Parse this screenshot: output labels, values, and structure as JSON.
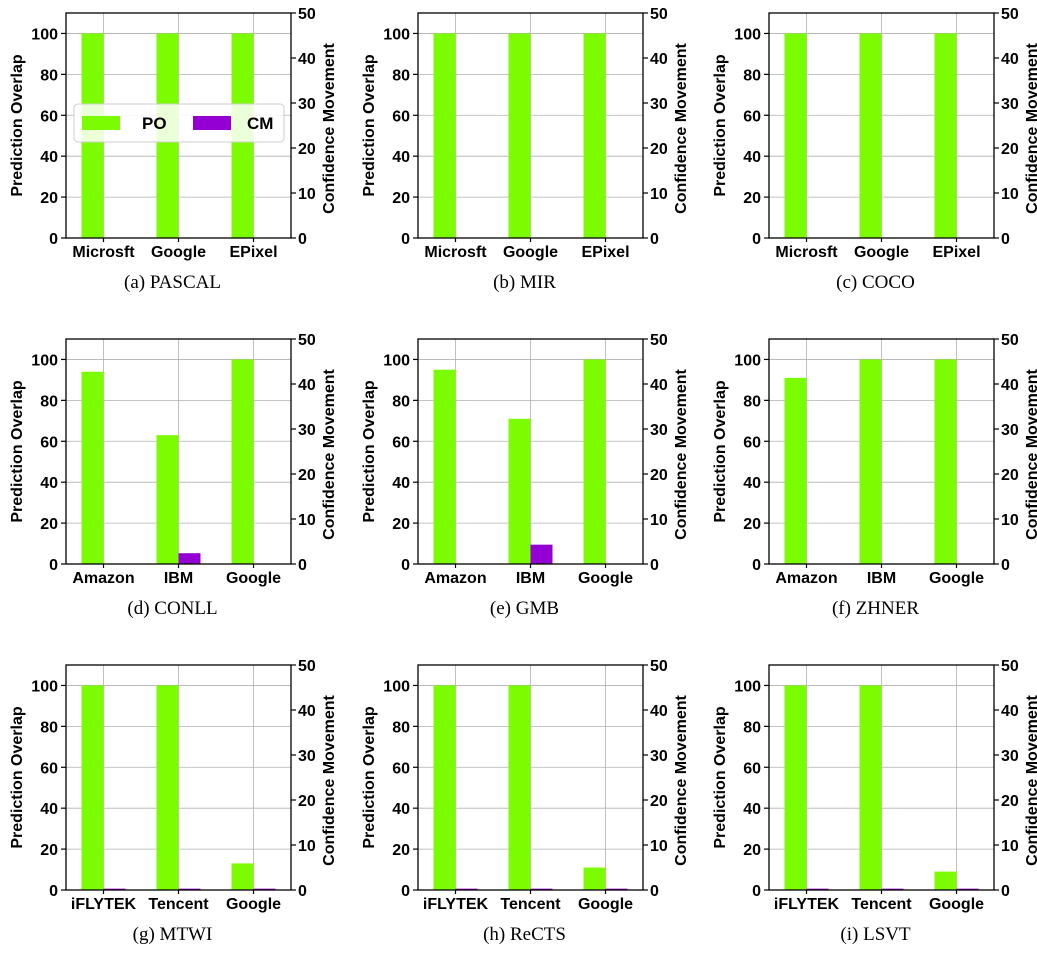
{
  "legend": {
    "po_label": "PO",
    "cm_label": "CM"
  },
  "colors": {
    "po": "#7CFC00",
    "cm": "#9400D3"
  },
  "chart_data": [
    {
      "type": "bar",
      "caption": "(a) PASCAL",
      "categories": [
        "Microsft",
        "Google",
        "EPixel"
      ],
      "series": [
        {
          "name": "PO",
          "values": [
            100,
            100,
            100
          ],
          "axis": "left"
        },
        {
          "name": "CM",
          "values": [
            0,
            0,
            0
          ],
          "axis": "right"
        }
      ],
      "ylabel": "Prediction Overlap",
      "ylabel_right": "Confidence Movement",
      "ylim": [
        0,
        110
      ],
      "ylim_right": [
        0,
        50
      ],
      "yticks": [
        0,
        20,
        40,
        60,
        80,
        100
      ],
      "yticks_right": [
        0,
        10,
        20,
        30,
        40,
        50
      ],
      "grid": true,
      "legend": "center-left"
    },
    {
      "type": "bar",
      "caption": "(b) MIR",
      "categories": [
        "Microsft",
        "Google",
        "EPixel"
      ],
      "series": [
        {
          "name": "PO",
          "values": [
            100,
            100,
            100
          ],
          "axis": "left"
        },
        {
          "name": "CM",
          "values": [
            0,
            0,
            0
          ],
          "axis": "right"
        }
      ],
      "ylabel": "Prediction Overlap",
      "ylabel_right": "Confidence Movement",
      "ylim": [
        0,
        110
      ],
      "ylim_right": [
        0,
        50
      ],
      "yticks": [
        0,
        20,
        40,
        60,
        80,
        100
      ],
      "yticks_right": [
        0,
        10,
        20,
        30,
        40,
        50
      ],
      "grid": true
    },
    {
      "type": "bar",
      "caption": "(c) COCO",
      "categories": [
        "Microsft",
        "Google",
        "EPixel"
      ],
      "series": [
        {
          "name": "PO",
          "values": [
            100,
            100,
            100
          ],
          "axis": "left"
        },
        {
          "name": "CM",
          "values": [
            0,
            0,
            0
          ],
          "axis": "right"
        }
      ],
      "ylabel": "Prediction Overlap",
      "ylabel_right": "Confidence Movement",
      "ylim": [
        0,
        110
      ],
      "ylim_right": [
        0,
        50
      ],
      "yticks": [
        0,
        20,
        40,
        60,
        80,
        100
      ],
      "yticks_right": [
        0,
        10,
        20,
        30,
        40,
        50
      ],
      "grid": true
    },
    {
      "type": "bar",
      "caption": "(d) CONLL",
      "categories": [
        "Amazon",
        "IBM",
        "Google"
      ],
      "series": [
        {
          "name": "PO",
          "values": [
            94,
            63,
            100
          ],
          "axis": "left"
        },
        {
          "name": "CM",
          "values": [
            0,
            2.4,
            0
          ],
          "axis": "right"
        }
      ],
      "ylabel": "Prediction Overlap",
      "ylabel_right": "Confidence Movement",
      "ylim": [
        0,
        110
      ],
      "ylim_right": [
        0,
        50
      ],
      "yticks": [
        0,
        20,
        40,
        60,
        80,
        100
      ],
      "yticks_right": [
        0,
        10,
        20,
        30,
        40,
        50
      ],
      "grid": true
    },
    {
      "type": "bar",
      "caption": "(e) GMB",
      "categories": [
        "Amazon",
        "IBM",
        "Google"
      ],
      "series": [
        {
          "name": "PO",
          "values": [
            95,
            71,
            100
          ],
          "axis": "left"
        },
        {
          "name": "CM",
          "values": [
            0,
            4.3,
            0
          ],
          "axis": "right"
        }
      ],
      "ylabel": "Prediction Overlap",
      "ylabel_right": "Confidence Movement",
      "ylim": [
        0,
        110
      ],
      "ylim_right": [
        0,
        50
      ],
      "yticks": [
        0,
        20,
        40,
        60,
        80,
        100
      ],
      "yticks_right": [
        0,
        10,
        20,
        30,
        40,
        50
      ],
      "grid": true
    },
    {
      "type": "bar",
      "caption": "(f) ZHNER",
      "categories": [
        "Amazon",
        "IBM",
        "Google"
      ],
      "series": [
        {
          "name": "PO",
          "values": [
            91,
            100,
            100
          ],
          "axis": "left"
        },
        {
          "name": "CM",
          "values": [
            0,
            0,
            0
          ],
          "axis": "right"
        }
      ],
      "ylabel": "Prediction Overlap",
      "ylabel_right": "Confidence Movement",
      "ylim": [
        0,
        110
      ],
      "ylim_right": [
        0,
        50
      ],
      "yticks": [
        0,
        20,
        40,
        60,
        80,
        100
      ],
      "yticks_right": [
        0,
        10,
        20,
        30,
        40,
        50
      ],
      "grid": true
    },
    {
      "type": "bar",
      "caption": "(g) MTWI",
      "categories": [
        "iFLYTEK",
        "Tencent",
        "Google"
      ],
      "series": [
        {
          "name": "PO",
          "values": [
            100,
            100,
            13
          ],
          "axis": "left"
        },
        {
          "name": "CM",
          "values": [
            0.3,
            0.3,
            0.3
          ],
          "axis": "right"
        }
      ],
      "ylabel": "Prediction Overlap",
      "ylabel_right": "Confidence Movement",
      "ylim": [
        0,
        110
      ],
      "ylim_right": [
        0,
        50
      ],
      "yticks": [
        0,
        20,
        40,
        60,
        80,
        100
      ],
      "yticks_right": [
        0,
        10,
        20,
        30,
        40,
        50
      ],
      "grid": true
    },
    {
      "type": "bar",
      "caption": "(h) ReCTS",
      "categories": [
        "iFLYTEK",
        "Tencent",
        "Google"
      ],
      "series": [
        {
          "name": "PO",
          "values": [
            100,
            100,
            11
          ],
          "axis": "left"
        },
        {
          "name": "CM",
          "values": [
            0.3,
            0.3,
            0.3
          ],
          "axis": "right"
        }
      ],
      "ylabel": "Prediction Overlap",
      "ylabel_right": "Confidence Movement",
      "ylim": [
        0,
        110
      ],
      "ylim_right": [
        0,
        50
      ],
      "yticks": [
        0,
        20,
        40,
        60,
        80,
        100
      ],
      "yticks_right": [
        0,
        10,
        20,
        30,
        40,
        50
      ],
      "grid": true
    },
    {
      "type": "bar",
      "caption": "(i) LSVT",
      "categories": [
        "iFLYTEK",
        "Tencent",
        "Google"
      ],
      "series": [
        {
          "name": "PO",
          "values": [
            100,
            100,
            9
          ],
          "axis": "left"
        },
        {
          "name": "CM",
          "values": [
            0.3,
            0.3,
            0.3
          ],
          "axis": "right"
        }
      ],
      "ylabel": "Prediction Overlap",
      "ylabel_right": "Confidence Movement",
      "ylim": [
        0,
        110
      ],
      "ylim_right": [
        0,
        50
      ],
      "yticks": [
        0,
        20,
        40,
        60,
        80,
        100
      ],
      "yticks_right": [
        0,
        10,
        20,
        30,
        40,
        50
      ],
      "grid": true
    }
  ]
}
